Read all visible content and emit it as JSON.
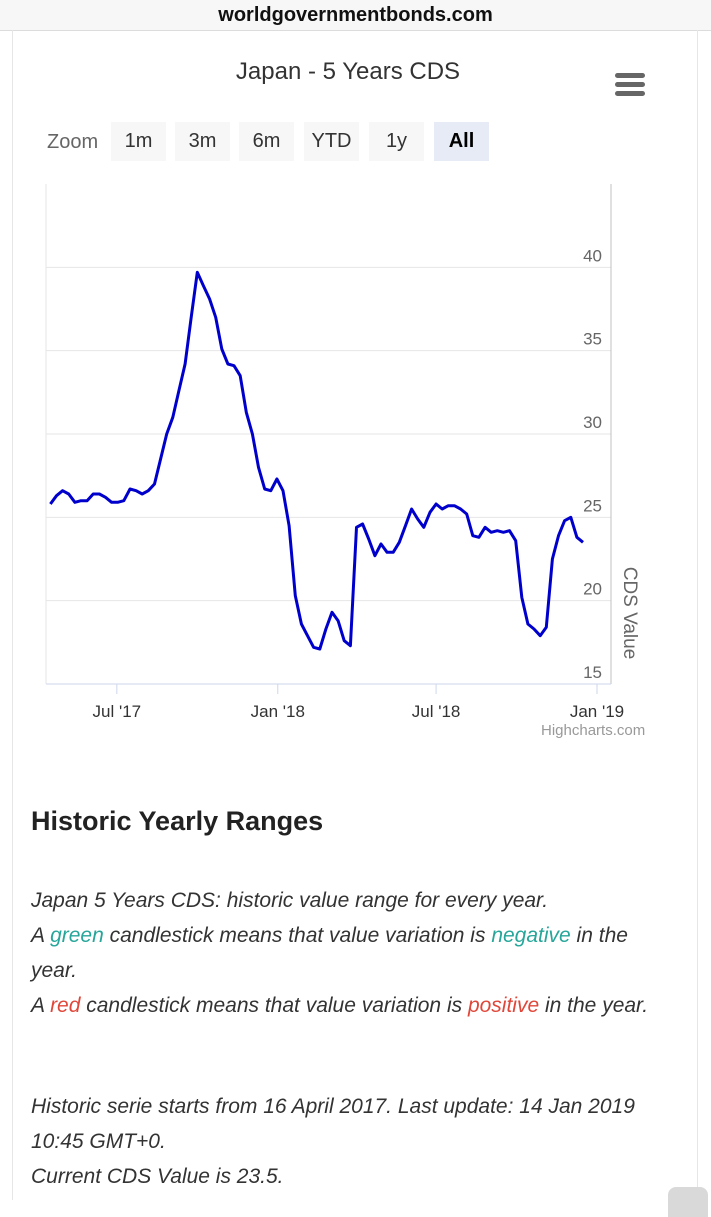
{
  "browser": {
    "url": "worldgovernmentbonds.com"
  },
  "chart_title": "Japan - 5 Years CDS",
  "menu_icon": "hamburger-menu-icon",
  "zoom": {
    "label": "Zoom",
    "buttons": [
      "1m",
      "3m",
      "6m",
      "YTD",
      "1y",
      "All"
    ],
    "active": "All"
  },
  "credits": "Highcharts.com",
  "chart_data": {
    "type": "line",
    "title": "Japan - 5 Years CDS",
    "ylabel": "CDS Value",
    "xlabel": "",
    "ylim": [
      15,
      45
    ],
    "yticks": [
      15,
      20,
      25,
      30,
      35,
      40
    ],
    "xlim": [
      "2017-04-16",
      "2019-01-14"
    ],
    "xticks": [
      {
        "label": "Jul '17",
        "date": "2017-07-01"
      },
      {
        "label": "Jan '18",
        "date": "2018-01-01"
      },
      {
        "label": "Jul '18",
        "date": "2018-07-01"
      },
      {
        "label": "Jan '19",
        "date": "2019-01-01"
      }
    ],
    "color": "#0000cc",
    "grid": true,
    "series": [
      {
        "points": [
          [
            "2017-04-16",
            25.8
          ],
          [
            "2017-04-23",
            26.3
          ],
          [
            "2017-04-30",
            26.6
          ],
          [
            "2017-05-07",
            26.4
          ],
          [
            "2017-05-14",
            25.9
          ],
          [
            "2017-05-21",
            26.0
          ],
          [
            "2017-05-28",
            26.0
          ],
          [
            "2017-06-04",
            26.4
          ],
          [
            "2017-06-11",
            26.4
          ],
          [
            "2017-06-18",
            26.2
          ],
          [
            "2017-06-25",
            25.9
          ],
          [
            "2017-07-02",
            25.9
          ],
          [
            "2017-07-09",
            26.0
          ],
          [
            "2017-07-16",
            26.7
          ],
          [
            "2017-07-23",
            26.6
          ],
          [
            "2017-07-30",
            26.4
          ],
          [
            "2017-08-06",
            26.6
          ],
          [
            "2017-08-13",
            27.0
          ],
          [
            "2017-08-20",
            28.5
          ],
          [
            "2017-08-27",
            30.0
          ],
          [
            "2017-09-03",
            31.0
          ],
          [
            "2017-09-10",
            32.6
          ],
          [
            "2017-09-17",
            34.2
          ],
          [
            "2017-09-24",
            37.0
          ],
          [
            "2017-10-01",
            39.7
          ],
          [
            "2017-10-08",
            38.9
          ],
          [
            "2017-10-15",
            38.1
          ],
          [
            "2017-10-22",
            37.0
          ],
          [
            "2017-10-29",
            35.1
          ],
          [
            "2017-11-05",
            34.2
          ],
          [
            "2017-11-12",
            34.1
          ],
          [
            "2017-11-19",
            33.5
          ],
          [
            "2017-11-26",
            31.3
          ],
          [
            "2017-12-03",
            30.0
          ],
          [
            "2017-12-10",
            28.0
          ],
          [
            "2017-12-17",
            26.7
          ],
          [
            "2017-12-24",
            26.6
          ],
          [
            "2017-12-31",
            27.3
          ],
          [
            "2018-01-07",
            26.6
          ],
          [
            "2018-01-14",
            24.5
          ],
          [
            "2018-01-21",
            20.3
          ],
          [
            "2018-01-28",
            18.6
          ],
          [
            "2018-02-04",
            17.9
          ],
          [
            "2018-02-11",
            17.2
          ],
          [
            "2018-02-18",
            17.1
          ],
          [
            "2018-02-25",
            18.3
          ],
          [
            "2018-03-04",
            19.3
          ],
          [
            "2018-03-11",
            18.8
          ],
          [
            "2018-03-18",
            17.6
          ],
          [
            "2018-03-25",
            17.3
          ],
          [
            "2018-04-01",
            24.4
          ],
          [
            "2018-04-08",
            24.6
          ],
          [
            "2018-04-15",
            23.7
          ],
          [
            "2018-04-22",
            22.7
          ],
          [
            "2018-04-29",
            23.4
          ],
          [
            "2018-05-06",
            22.9
          ],
          [
            "2018-05-13",
            22.9
          ],
          [
            "2018-05-20",
            23.5
          ],
          [
            "2018-05-27",
            24.5
          ],
          [
            "2018-06-03",
            25.5
          ],
          [
            "2018-06-10",
            24.9
          ],
          [
            "2018-06-17",
            24.4
          ],
          [
            "2018-06-24",
            25.3
          ],
          [
            "2018-07-01",
            25.8
          ],
          [
            "2018-07-08",
            25.5
          ],
          [
            "2018-07-15",
            25.7
          ],
          [
            "2018-07-22",
            25.7
          ],
          [
            "2018-07-29",
            25.5
          ],
          [
            "2018-08-05",
            25.2
          ],
          [
            "2018-08-12",
            23.9
          ],
          [
            "2018-08-19",
            23.8
          ],
          [
            "2018-08-26",
            24.4
          ],
          [
            "2018-09-02",
            24.1
          ],
          [
            "2018-09-09",
            24.2
          ],
          [
            "2018-09-16",
            24.1
          ],
          [
            "2018-09-23",
            24.2
          ],
          [
            "2018-09-30",
            23.6
          ],
          [
            "2018-10-07",
            20.2
          ],
          [
            "2018-10-14",
            18.6
          ],
          [
            "2018-10-21",
            18.3
          ],
          [
            "2018-10-28",
            17.9
          ],
          [
            "2018-11-04",
            18.4
          ],
          [
            "2018-11-11",
            22.5
          ],
          [
            "2018-11-18",
            23.9
          ],
          [
            "2018-11-25",
            24.8
          ],
          [
            "2018-12-02",
            25.0
          ],
          [
            "2018-12-09",
            23.8
          ],
          [
            "2018-12-16",
            23.5
          ]
        ]
      }
    ]
  },
  "section": {
    "title": "Historic Yearly Ranges",
    "line1": "Japan 5 Years CDS: historic value range for every year.",
    "line2": {
      "pre": "A ",
      "word": "green",
      "mid": " candlestick means that value variation is ",
      "var": "negative",
      "post": " in the year."
    },
    "line3": {
      "pre": "A ",
      "word": "red",
      "mid": " candlestick means that value variation is ",
      "var": "positive",
      "post": " in the year."
    },
    "colors": {
      "green": "#26a69a",
      "red": "#e0473a"
    },
    "footer": {
      "serie": "Historic serie starts from 16 April 2017. Last update: 14 Jan 2019 10:45 GMT+0.",
      "current": "Current CDS Value is 23.5."
    }
  }
}
